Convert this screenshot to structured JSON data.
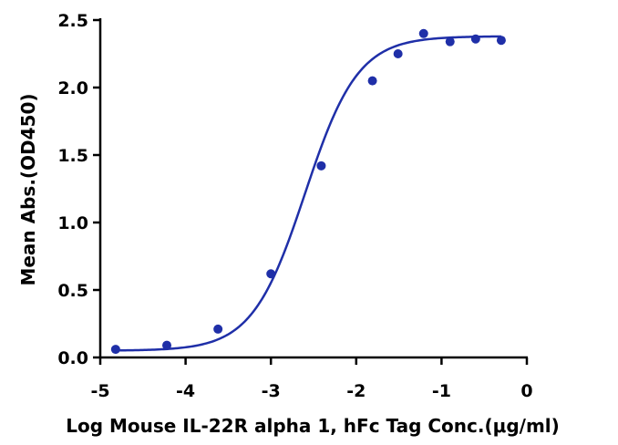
{
  "chart_data": {
    "type": "scatter",
    "title": "",
    "xlabel": "Log Mouse IL-22R alpha 1, hFc Tag Conc.(μg/ml)",
    "ylabel": "Mean Abs.(OD450)",
    "xlim": [
      -5,
      0
    ],
    "ylim": [
      0,
      2.5
    ],
    "xticks": [
      -5,
      -4,
      -3,
      -2,
      -1,
      0
    ],
    "yticks": [
      0.0,
      0.5,
      1.0,
      1.5,
      2.0,
      2.5
    ],
    "xtick_labels": [
      "-5",
      "-4",
      "-3",
      "-2",
      "-1",
      "0"
    ],
    "ytick_labels": [
      "0.0",
      "0.5",
      "1.0",
      "1.5",
      "2.0",
      "2.5"
    ],
    "grid": false,
    "legend": "none",
    "series": [
      {
        "color": "#1f2fa8",
        "points": [
          {
            "x": -4.82,
            "y": 0.06
          },
          {
            "x": -4.22,
            "y": 0.09
          },
          {
            "x": -3.62,
            "y": 0.21
          },
          {
            "x": -3.0,
            "y": 0.62
          },
          {
            "x": -2.41,
            "y": 1.42
          },
          {
            "x": -1.81,
            "y": 2.05
          },
          {
            "x": -1.51,
            "y": 2.25
          },
          {
            "x": -1.21,
            "y": 2.4
          },
          {
            "x": -0.9,
            "y": 2.34
          },
          {
            "x": -0.6,
            "y": 2.36
          },
          {
            "x": -0.3,
            "y": 2.35
          }
        ],
        "fit": {
          "model": "4PL",
          "bottom": 0.05,
          "top": 2.38,
          "logEC50": -2.6,
          "hill": 1.4,
          "x_range": [
            -4.82,
            -0.3
          ]
        }
      }
    ]
  }
}
